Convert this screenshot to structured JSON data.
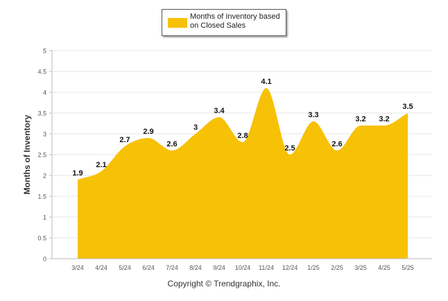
{
  "chart_data": {
    "type": "area",
    "categories": [
      "3/24",
      "4/24",
      "5/24",
      "6/24",
      "7/24",
      "8/24",
      "9/24",
      "10/24",
      "11/24",
      "12/24",
      "1/25",
      "2/25",
      "3/25",
      "4/25",
      "5/25"
    ],
    "series": [
      {
        "name": "Months of Inventory based on Closed Sales",
        "values": [
          1.9,
          2.1,
          2.7,
          2.9,
          2.6,
          3,
          3.4,
          2.8,
          4.1,
          2.5,
          3.3,
          2.6,
          3.2,
          3.2,
          3.5
        ],
        "data_labels": [
          "1.9",
          "2.1",
          "2.7",
          "2.9",
          "2.6",
          "3",
          "3.4",
          "2.8",
          "4.1",
          "2.5",
          "3.3",
          "2.6",
          "3.2",
          "3.2",
          "3.5"
        ],
        "color": "#F7C106"
      }
    ],
    "ylabel": "Months of Inventory",
    "xlabel": "",
    "ylim": [
      0,
      5
    ],
    "yticks": [
      "0",
      "0.5",
      "1",
      "1.5",
      "2",
      "2.5",
      "3",
      "3.5",
      "4",
      "4.5",
      "5"
    ],
    "grid": true,
    "legend_placement": "top-center"
  },
  "legend": {
    "label": "Months of Inventory based on Closed Sales"
  },
  "footer": {
    "copyright": "Copyright © Trendgraphix, Inc."
  },
  "colors": {
    "area": "#F7C106",
    "grid": "#E6E6E6",
    "axis": "#BBBBBB"
  }
}
